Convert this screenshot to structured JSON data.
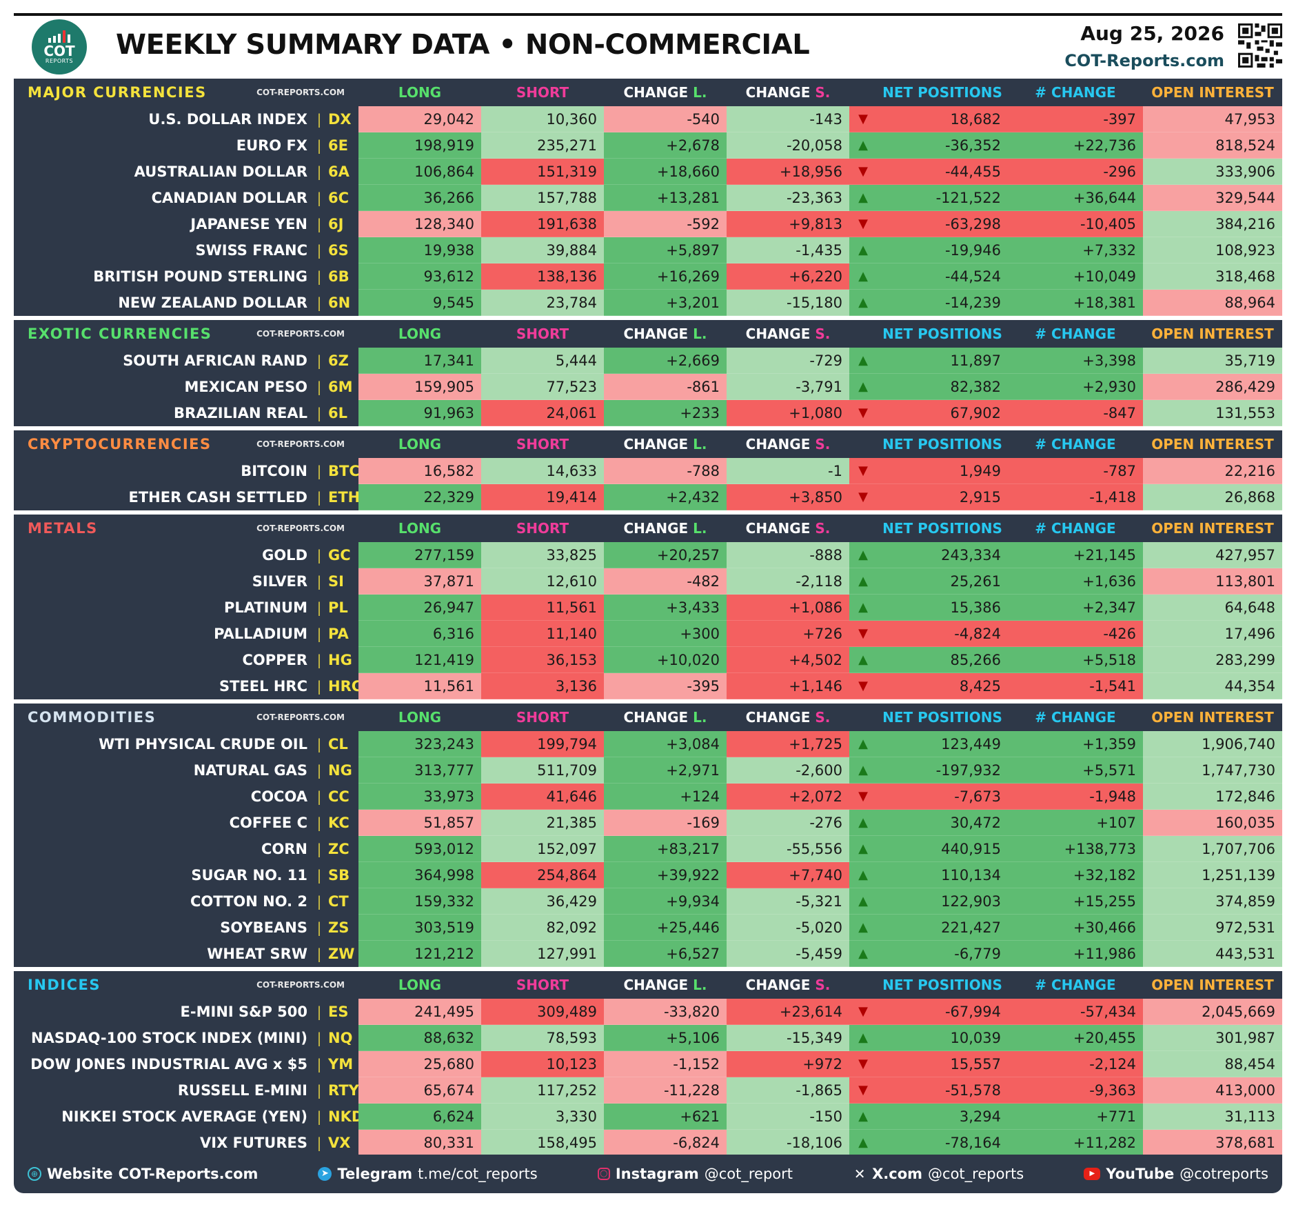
{
  "header": {
    "title": "WEEKLY SUMMARY DATA • NON-COMMERCIAL",
    "date": "Aug 25, 2026",
    "site": "COT-Reports.com",
    "logo_text": "COT",
    "logo_subtext": "REPORTS"
  },
  "columns": [
    "LONG",
    "SHORT",
    "CHANGE L.",
    "CHANGE S.",
    "NET POSITIONS",
    "# CHANGE",
    "OPEN INTEREST"
  ],
  "column_colors": {
    "LONG": "#57e06c",
    "SHORT": "#f03c9a",
    "CHANGE L.": "#ffffff",
    "CHANGE S.": "#ffffff",
    "NET POSITIONS": "#27c8f0",
    "# CHANGE": "#27c8f0",
    "OPEN INTEREST": "#ffb23a"
  },
  "source_label": "COT-REPORTS.COM",
  "colors": {
    "green": "#5ebc72",
    "light_green": "#aadbb0",
    "red": "#f46060",
    "light_red": "#f8a1a1",
    "panel": "#2e3848"
  },
  "sections": [
    {
      "title": "MAJOR CURRENCIES",
      "title_color": "#f4e23c",
      "rows": [
        {
          "name": "U.S. DOLLAR INDEX",
          "code": "DX",
          "long": "29,042",
          "short": "10,360",
          "chg_long": "-540",
          "chg_short": "-143",
          "dir": "down",
          "net": "18,682",
          "net_chg": "-397",
          "oi": "47,953",
          "bg": [
            "lr",
            "lg",
            "lr",
            "lg",
            "r",
            "r",
            "lr"
          ]
        },
        {
          "name": "EURO FX",
          "code": "6E",
          "long": "198,919",
          "short": "235,271",
          "chg_long": "+2,678",
          "chg_short": "-20,058",
          "dir": "up",
          "net": "-36,352",
          "net_chg": "+22,736",
          "oi": "818,524",
          "bg": [
            "g",
            "lg",
            "g",
            "lg",
            "g",
            "g",
            "lr"
          ]
        },
        {
          "name": "AUSTRALIAN DOLLAR",
          "code": "6A",
          "long": "106,864",
          "short": "151,319",
          "chg_long": "+18,660",
          "chg_short": "+18,956",
          "dir": "down",
          "net": "-44,455",
          "net_chg": "-296",
          "oi": "333,906",
          "bg": [
            "g",
            "r",
            "g",
            "r",
            "r",
            "r",
            "lg"
          ]
        },
        {
          "name": "CANADIAN DOLLAR",
          "code": "6C",
          "long": "36,266",
          "short": "157,788",
          "chg_long": "+13,281",
          "chg_short": "-23,363",
          "dir": "up",
          "net": "-121,522",
          "net_chg": "+36,644",
          "oi": "329,544",
          "bg": [
            "g",
            "lg",
            "g",
            "lg",
            "g",
            "g",
            "lr"
          ]
        },
        {
          "name": "JAPANESE YEN",
          "code": "6J",
          "long": "128,340",
          "short": "191,638",
          "chg_long": "-592",
          "chg_short": "+9,813",
          "dir": "down",
          "net": "-63,298",
          "net_chg": "-10,405",
          "oi": "384,216",
          "bg": [
            "lr",
            "r",
            "lr",
            "r",
            "r",
            "r",
            "lg"
          ]
        },
        {
          "name": "SWISS FRANC",
          "code": "6S",
          "long": "19,938",
          "short": "39,884",
          "chg_long": "+5,897",
          "chg_short": "-1,435",
          "dir": "up",
          "net": "-19,946",
          "net_chg": "+7,332",
          "oi": "108,923",
          "bg": [
            "g",
            "lg",
            "g",
            "lg",
            "g",
            "g",
            "lg"
          ]
        },
        {
          "name": "BRITISH POUND STERLING",
          "code": "6B",
          "long": "93,612",
          "short": "138,136",
          "chg_long": "+16,269",
          "chg_short": "+6,220",
          "dir": "up",
          "net": "-44,524",
          "net_chg": "+10,049",
          "oi": "318,468",
          "bg": [
            "g",
            "r",
            "g",
            "r",
            "g",
            "g",
            "lg"
          ]
        },
        {
          "name": "NEW ZEALAND DOLLAR",
          "code": "6N",
          "long": "9,545",
          "short": "23,784",
          "chg_long": "+3,201",
          "chg_short": "-15,180",
          "dir": "up",
          "net": "-14,239",
          "net_chg": "+18,381",
          "oi": "88,964",
          "bg": [
            "g",
            "lg",
            "g",
            "lg",
            "g",
            "g",
            "lr"
          ]
        }
      ]
    },
    {
      "title": "EXOTIC CURRENCIES",
      "title_color": "#57e06c",
      "rows": [
        {
          "name": "SOUTH AFRICAN RAND",
          "code": "6Z",
          "long": "17,341",
          "short": "5,444",
          "chg_long": "+2,669",
          "chg_short": "-729",
          "dir": "up",
          "net": "11,897",
          "net_chg": "+3,398",
          "oi": "35,719",
          "bg": [
            "g",
            "lg",
            "g",
            "lg",
            "g",
            "g",
            "lg"
          ]
        },
        {
          "name": "MEXICAN PESO",
          "code": "6M",
          "long": "159,905",
          "short": "77,523",
          "chg_long": "-861",
          "chg_short": "-3,791",
          "dir": "up",
          "net": "82,382",
          "net_chg": "+2,930",
          "oi": "286,429",
          "bg": [
            "lr",
            "lg",
            "lr",
            "lg",
            "g",
            "g",
            "lr"
          ]
        },
        {
          "name": "BRAZILIAN REAL",
          "code": "6L",
          "long": "91,963",
          "short": "24,061",
          "chg_long": "+233",
          "chg_short": "+1,080",
          "dir": "down",
          "net": "67,902",
          "net_chg": "-847",
          "oi": "131,553",
          "bg": [
            "g",
            "r",
            "g",
            "r",
            "r",
            "r",
            "lg"
          ]
        }
      ]
    },
    {
      "title": "CRYPTOCURRENCIES",
      "title_color": "#ff8c42",
      "rows": [
        {
          "name": "BITCOIN",
          "code": "BTC",
          "long": "16,582",
          "short": "14,633",
          "chg_long": "-788",
          "chg_short": "-1",
          "dir": "down",
          "net": "1,949",
          "net_chg": "-787",
          "oi": "22,216",
          "bg": [
            "lr",
            "lg",
            "lr",
            "lg",
            "r",
            "r",
            "lr"
          ]
        },
        {
          "name": "ETHER CASH SETTLED",
          "code": "ETH",
          "long": "22,329",
          "short": "19,414",
          "chg_long": "+2,432",
          "chg_short": "+3,850",
          "dir": "down",
          "net": "2,915",
          "net_chg": "-1,418",
          "oi": "26,868",
          "bg": [
            "g",
            "r",
            "g",
            "r",
            "r",
            "r",
            "lg"
          ]
        }
      ]
    },
    {
      "title": "METALS",
      "title_color": "#f05a5a",
      "rows": [
        {
          "name": "GOLD",
          "code": "GC",
          "long": "277,159",
          "short": "33,825",
          "chg_long": "+20,257",
          "chg_short": "-888",
          "dir": "up",
          "net": "243,334",
          "net_chg": "+21,145",
          "oi": "427,957",
          "bg": [
            "g",
            "lg",
            "g",
            "lg",
            "g",
            "g",
            "lg"
          ]
        },
        {
          "name": "SILVER",
          "code": "SI",
          "long": "37,871",
          "short": "12,610",
          "chg_long": "-482",
          "chg_short": "-2,118",
          "dir": "up",
          "net": "25,261",
          "net_chg": "+1,636",
          "oi": "113,801",
          "bg": [
            "lr",
            "lg",
            "lr",
            "lg",
            "g",
            "g",
            "lr"
          ]
        },
        {
          "name": "PLATINUM",
          "code": "PL",
          "long": "26,947",
          "short": "11,561",
          "chg_long": "+3,433",
          "chg_short": "+1,086",
          "dir": "up",
          "net": "15,386",
          "net_chg": "+2,347",
          "oi": "64,648",
          "bg": [
            "g",
            "r",
            "g",
            "r",
            "g",
            "g",
            "lg"
          ]
        },
        {
          "name": "PALLADIUM",
          "code": "PA",
          "long": "6,316",
          "short": "11,140",
          "chg_long": "+300",
          "chg_short": "+726",
          "dir": "down",
          "net": "-4,824",
          "net_chg": "-426",
          "oi": "17,496",
          "bg": [
            "g",
            "r",
            "g",
            "r",
            "r",
            "r",
            "lg"
          ]
        },
        {
          "name": "COPPER",
          "code": "HG",
          "long": "121,419",
          "short": "36,153",
          "chg_long": "+10,020",
          "chg_short": "+4,502",
          "dir": "up",
          "net": "85,266",
          "net_chg": "+5,518",
          "oi": "283,299",
          "bg": [
            "g",
            "r",
            "g",
            "r",
            "g",
            "g",
            "lg"
          ]
        },
        {
          "name": "STEEL HRC",
          "code": "HRC",
          "long": "11,561",
          "short": "3,136",
          "chg_long": "-395",
          "chg_short": "+1,146",
          "dir": "down",
          "net": "8,425",
          "net_chg": "-1,541",
          "oi": "44,354",
          "bg": [
            "lr",
            "r",
            "lr",
            "r",
            "r",
            "r",
            "lg"
          ]
        }
      ]
    },
    {
      "title": "COMMODITIES",
      "title_color": "#d6e4f0",
      "rows": [
        {
          "name": "WTI PHYSICAL CRUDE OIL",
          "code": "CL",
          "long": "323,243",
          "short": "199,794",
          "chg_long": "+3,084",
          "chg_short": "+1,725",
          "dir": "up",
          "net": "123,449",
          "net_chg": "+1,359",
          "oi": "1,906,740",
          "bg": [
            "g",
            "r",
            "g",
            "r",
            "g",
            "g",
            "lg"
          ]
        },
        {
          "name": "NATURAL GAS",
          "code": "NG",
          "long": "313,777",
          "short": "511,709",
          "chg_long": "+2,971",
          "chg_short": "-2,600",
          "dir": "up",
          "net": "-197,932",
          "net_chg": "+5,571",
          "oi": "1,747,730",
          "bg": [
            "g",
            "lg",
            "g",
            "lg",
            "g",
            "g",
            "lg"
          ]
        },
        {
          "name": "COCOA",
          "code": "CC",
          "long": "33,973",
          "short": "41,646",
          "chg_long": "+124",
          "chg_short": "+2,072",
          "dir": "down",
          "net": "-7,673",
          "net_chg": "-1,948",
          "oi": "172,846",
          "bg": [
            "g",
            "r",
            "g",
            "r",
            "r",
            "r",
            "lg"
          ]
        },
        {
          "name": "COFFEE C",
          "code": "KC",
          "long": "51,857",
          "short": "21,385",
          "chg_long": "-169",
          "chg_short": "-276",
          "dir": "up",
          "net": "30,472",
          "net_chg": "+107",
          "oi": "160,035",
          "bg": [
            "lr",
            "lg",
            "lr",
            "lg",
            "g",
            "g",
            "lr"
          ]
        },
        {
          "name": "CORN",
          "code": "ZC",
          "long": "593,012",
          "short": "152,097",
          "chg_long": "+83,217",
          "chg_short": "-55,556",
          "dir": "up",
          "net": "440,915",
          "net_chg": "+138,773",
          "oi": "1,707,706",
          "bg": [
            "g",
            "lg",
            "g",
            "lg",
            "g",
            "g",
            "lg"
          ]
        },
        {
          "name": "SUGAR NO. 11",
          "code": "SB",
          "long": "364,998",
          "short": "254,864",
          "chg_long": "+39,922",
          "chg_short": "+7,740",
          "dir": "up",
          "net": "110,134",
          "net_chg": "+32,182",
          "oi": "1,251,139",
          "bg": [
            "g",
            "r",
            "g",
            "r",
            "g",
            "g",
            "lg"
          ]
        },
        {
          "name": "COTTON NO. 2",
          "code": "CT",
          "long": "159,332",
          "short": "36,429",
          "chg_long": "+9,934",
          "chg_short": "-5,321",
          "dir": "up",
          "net": "122,903",
          "net_chg": "+15,255",
          "oi": "374,859",
          "bg": [
            "g",
            "lg",
            "g",
            "lg",
            "g",
            "g",
            "lg"
          ]
        },
        {
          "name": "SOYBEANS",
          "code": "ZS",
          "long": "303,519",
          "short": "82,092",
          "chg_long": "+25,446",
          "chg_short": "-5,020",
          "dir": "up",
          "net": "221,427",
          "net_chg": "+30,466",
          "oi": "972,531",
          "bg": [
            "g",
            "lg",
            "g",
            "lg",
            "g",
            "g",
            "lg"
          ]
        },
        {
          "name": "WHEAT SRW",
          "code": "ZW",
          "long": "121,212",
          "short": "127,991",
          "chg_long": "+6,527",
          "chg_short": "-5,459",
          "dir": "up",
          "net": "-6,779",
          "net_chg": "+11,986",
          "oi": "443,531",
          "bg": [
            "g",
            "lg",
            "g",
            "lg",
            "g",
            "g",
            "lg"
          ]
        }
      ]
    },
    {
      "title": "INDICES",
      "title_color": "#27c8f0",
      "rows": [
        {
          "name": "E-MINI S&P 500",
          "code": "ES",
          "long": "241,495",
          "short": "309,489",
          "chg_long": "-33,820",
          "chg_short": "+23,614",
          "dir": "down",
          "net": "-67,994",
          "net_chg": "-57,434",
          "oi": "2,045,669",
          "bg": [
            "lr",
            "r",
            "lr",
            "r",
            "r",
            "r",
            "lr"
          ]
        },
        {
          "name": "NASDAQ-100 STOCK INDEX (MINI)",
          "code": "NQ",
          "long": "88,632",
          "short": "78,593",
          "chg_long": "+5,106",
          "chg_short": "-15,349",
          "dir": "up",
          "net": "10,039",
          "net_chg": "+20,455",
          "oi": "301,987",
          "bg": [
            "g",
            "lg",
            "g",
            "lg",
            "g",
            "g",
            "lg"
          ]
        },
        {
          "name": "DOW JONES INDUSTRIAL AVG x $5",
          "code": "YM",
          "long": "25,680",
          "short": "10,123",
          "chg_long": "-1,152",
          "chg_short": "+972",
          "dir": "down",
          "net": "15,557",
          "net_chg": "-2,124",
          "oi": "88,454",
          "bg": [
            "lr",
            "r",
            "lr",
            "r",
            "r",
            "r",
            "lg"
          ]
        },
        {
          "name": "RUSSELL E-MINI",
          "code": "RTY",
          "long": "65,674",
          "short": "117,252",
          "chg_long": "-11,228",
          "chg_short": "-1,865",
          "dir": "down",
          "net": "-51,578",
          "net_chg": "-9,363",
          "oi": "413,000",
          "bg": [
            "lr",
            "lg",
            "lr",
            "lg",
            "r",
            "r",
            "lr"
          ]
        },
        {
          "name": "NIKKEI STOCK AVERAGE (YEN)",
          "code": "NKD",
          "long": "6,624",
          "short": "3,330",
          "chg_long": "+621",
          "chg_short": "-150",
          "dir": "up",
          "net": "3,294",
          "net_chg": "+771",
          "oi": "31,113",
          "bg": [
            "g",
            "lg",
            "g",
            "lg",
            "g",
            "g",
            "lg"
          ]
        },
        {
          "name": "VIX FUTURES",
          "code": "VX",
          "long": "80,331",
          "short": "158,495",
          "chg_long": "-6,824",
          "chg_short": "-18,106",
          "dir": "up",
          "net": "-78,164",
          "net_chg": "+11,282",
          "oi": "378,681",
          "bg": [
            "lr",
            "lg",
            "lr",
            "lg",
            "g",
            "g",
            "lr"
          ]
        }
      ]
    }
  ],
  "footer": {
    "website_label": "Website",
    "website_value": "COT-Reports.com",
    "telegram_label": "Telegram",
    "telegram_value": "t.me/cot_reports",
    "instagram_label": "Instagram",
    "instagram_value": "@cot_report",
    "x_label": "X.com",
    "x_value": "@cot_reports",
    "youtube_label": "YouTube",
    "youtube_value": "@cotreports"
  }
}
